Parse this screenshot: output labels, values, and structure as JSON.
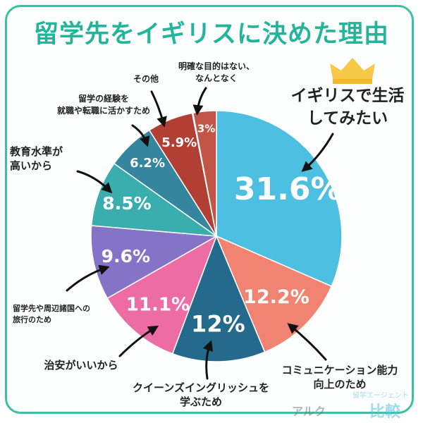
{
  "title": "留学先をイギリスに決めた理由",
  "chart_data": {
    "type": "pie",
    "start_angle_deg": 0,
    "direction": "clockwise",
    "slices": [
      {
        "label": "イギリスで生活してみたい",
        "value": 31.6,
        "pct_text": "31.6%",
        "color": "#4dbfe0"
      },
      {
        "label": "コミュニケーション能力向上のため",
        "value": 12.2,
        "pct_text": "12.2%",
        "color": "#f08372"
      },
      {
        "label": "クイーンズイングリッシュを学ぶため",
        "value": 12,
        "pct_text": "12%",
        "color": "#236a8d"
      },
      {
        "label": "治安がいいから",
        "value": 11.1,
        "pct_text": "11.1%",
        "color": "#ec6ca3"
      },
      {
        "label": "留学先や周辺諸国への旅行のため",
        "value": 9.6,
        "pct_text": "9.6%",
        "color": "#8573c8"
      },
      {
        "label": "高いから",
        "value": 8.5,
        "pct_text": "8.5%",
        "color": "#3aaeae"
      },
      {
        "label": "教育水準が高いから",
        "value": 6.2,
        "pct_text": "6.2%",
        "color": "#34859d"
      },
      {
        "label": "留学の経験を就職や転職に活かすため",
        "value": 5.9,
        "pct_text": "5.9%",
        "color": "#b23f33"
      },
      {
        "label": "その他",
        "value": 0.1,
        "pct_text": "",
        "color": "#c25646"
      },
      {
        "label": "明確な目的はない、なんとなく",
        "value": 3,
        "pct_text": "3%",
        "color": "#c25646"
      }
    ]
  },
  "labels": {
    "live_uk_1": "イギリスで生活",
    "live_uk_2": "してみたい",
    "communication_1": "コミュニケーション能力",
    "communication_2": "向上のため",
    "queens_1": "クイーンズイングリッシュを",
    "queens_2": "学ぶため",
    "safety": "治安がいいから",
    "travel_1": "留学先や周辺諸国への",
    "travel_2": "旅行のため",
    "education_1": "教育水準が",
    "education_2": "高いから",
    "career_1": "留学の経験を",
    "career_2": "就職や転職に活かすため",
    "other": "その他",
    "no_purpose_1": "明確な目的はない、",
    "no_purpose_2": "なんとなく"
  },
  "watermark": {
    "logo": "アルク",
    "top": "留学エージェント",
    "main": "比較"
  },
  "colors": {
    "title": "#22b59a",
    "crown": "#f7c948"
  }
}
